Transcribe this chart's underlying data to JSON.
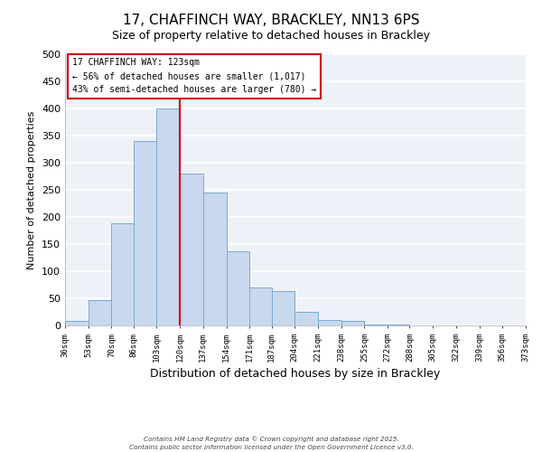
{
  "title": "17, CHAFFINCH WAY, BRACKLEY, NN13 6PS",
  "subtitle": "Size of property relative to detached houses in Brackley",
  "xlabel": "Distribution of detached houses by size in Brackley",
  "ylabel": "Number of detached properties",
  "bar_color": "#c8d8ee",
  "bar_edge_color": "#7aaad0",
  "background_color": "#ffffff",
  "axes_bg_color": "#eef2f8",
  "grid_color": "#ffffff",
  "vline_x": 120,
  "vline_color": "#cc0000",
  "bin_edges": [
    36,
    53,
    70,
    86,
    103,
    120,
    137,
    154,
    171,
    187,
    204,
    221,
    238,
    255,
    272,
    288,
    305,
    322,
    339,
    356,
    373
  ],
  "bar_heights": [
    8,
    46,
    188,
    340,
    400,
    280,
    245,
    137,
    70,
    63,
    25,
    10,
    8,
    2,
    1,
    0,
    0,
    0,
    0,
    0
  ],
  "tick_labels": [
    "36sqm",
    "53sqm",
    "70sqm",
    "86sqm",
    "103sqm",
    "120sqm",
    "137sqm",
    "154sqm",
    "171sqm",
    "187sqm",
    "204sqm",
    "221sqm",
    "238sqm",
    "255sqm",
    "272sqm",
    "288sqm",
    "305sqm",
    "322sqm",
    "339sqm",
    "356sqm",
    "373sqm"
  ],
  "ylim": [
    0,
    500
  ],
  "yticks": [
    0,
    50,
    100,
    150,
    200,
    250,
    300,
    350,
    400,
    450,
    500
  ],
  "annotation_title": "17 CHAFFINCH WAY: 123sqm",
  "annotation_line1": "← 56% of detached houses are smaller (1,017)",
  "annotation_line2": "43% of semi-detached houses are larger (780) →",
  "footer1": "Contains HM Land Registry data © Crown copyright and database right 2025.",
  "footer2": "Contains public sector information licensed under the Open Government Licence v3.0.",
  "annotation_box_color": "#ffffff",
  "annotation_box_edge": "#cc0000",
  "title_fontsize": 11,
  "subtitle_fontsize": 9
}
